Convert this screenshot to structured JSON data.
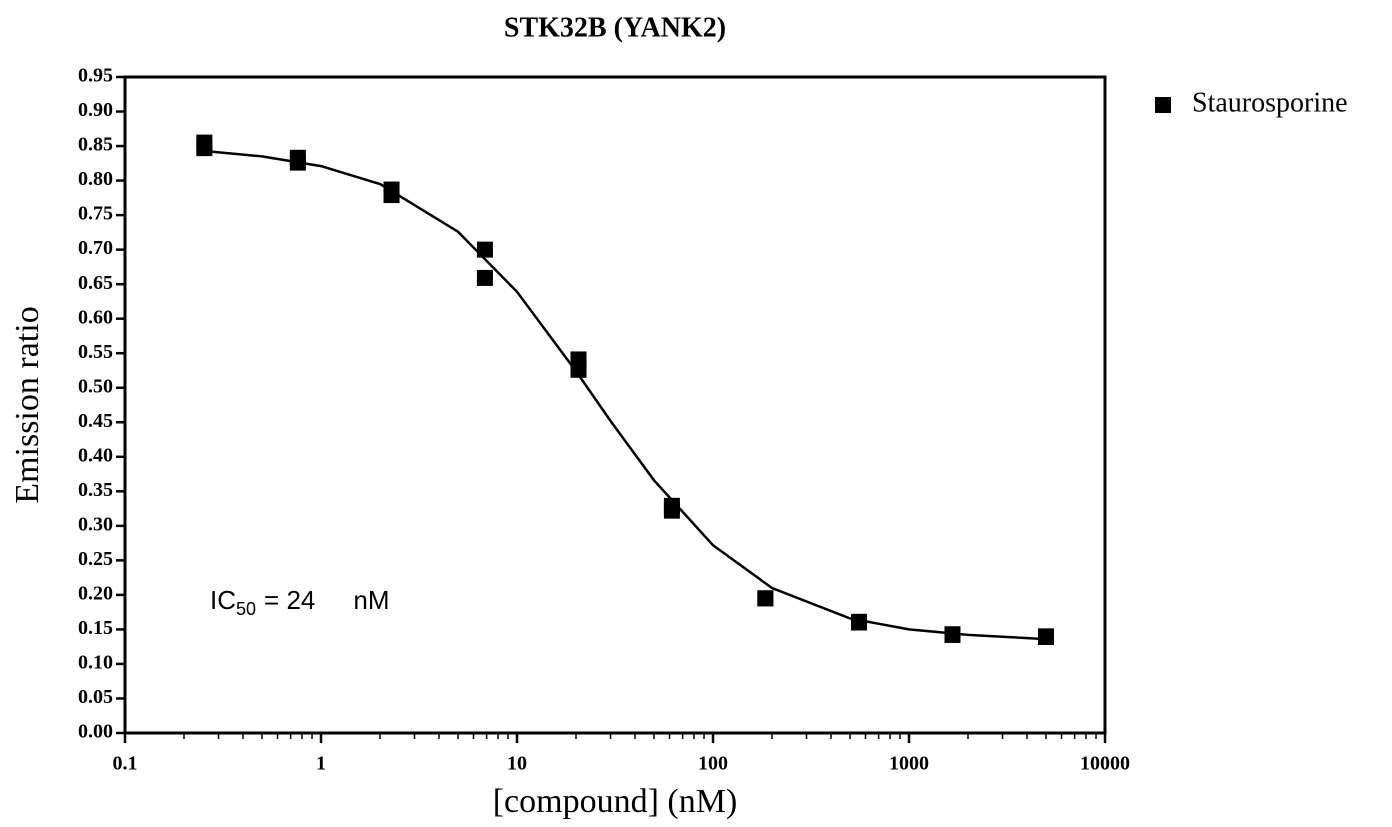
{
  "chart_data": {
    "type": "scatter",
    "title": "STK32B (YANK2)",
    "xlabel": "[compound] (nM)",
    "ylabel": "Emission ratio",
    "xscale": "log",
    "x": [
      0.254,
      0.254,
      0.762,
      0.762,
      2.29,
      2.29,
      6.86,
      6.86,
      20.6,
      20.6,
      61.7,
      61.7,
      185,
      185,
      556,
      556,
      1667,
      1667,
      5000,
      5000
    ],
    "series": [
      {
        "name": "Staurosporine",
        "color": "#000000",
        "values": [
          0.855,
          0.847,
          0.833,
          0.826,
          0.787,
          0.779,
          0.7,
          0.659,
          0.541,
          0.526,
          0.329,
          0.322,
          0.195,
          0.195,
          0.161,
          0.16,
          0.143,
          0.142,
          0.14,
          0.139
        ]
      }
    ],
    "fit_curve": {
      "color": "#000000",
      "x": [
        0.25,
        0.5,
        1,
        2,
        5,
        10,
        20,
        30,
        50,
        100,
        200,
        500,
        1000,
        2000,
        5000
      ],
      "values": [
        0.843,
        0.835,
        0.821,
        0.795,
        0.726,
        0.639,
        0.524,
        0.452,
        0.366,
        0.272,
        0.21,
        0.166,
        0.15,
        0.142,
        0.136
      ]
    },
    "annotation": {
      "prefix": "IC",
      "subscript": "50",
      "value": "= 24",
      "unit": "nM"
    },
    "legend": "outside-right-top",
    "xlim": [
      0.1,
      10000
    ],
    "xticks": [
      0.1,
      1,
      10,
      100,
      1000,
      10000
    ],
    "ylim": [
      0,
      0.95
    ],
    "yticks": [
      {
        "value": 0,
        "label": "0.00"
      },
      {
        "value": 0.05,
        "label": "0.05"
      },
      {
        "value": 0.1,
        "label": "0.10"
      },
      {
        "value": 0.15,
        "label": "0.15"
      },
      {
        "value": 0.2,
        "label": "0.20"
      },
      {
        "value": 0.25,
        "label": "0.25"
      },
      {
        "value": 0.3,
        "label": "0.30"
      },
      {
        "value": 0.35,
        "label": "0.35"
      },
      {
        "value": 0.4,
        "label": "0.40"
      },
      {
        "value": 0.45,
        "label": "0.45"
      },
      {
        "value": 0.5,
        "label": "0.50"
      },
      {
        "value": 0.55,
        "label": "0.55"
      },
      {
        "value": 0.6,
        "label": "0.60"
      },
      {
        "value": 0.65,
        "label": "0.65"
      },
      {
        "value": 0.7,
        "label": "0.70"
      },
      {
        "value": 0.75,
        "label": "0.75"
      },
      {
        "value": 0.8,
        "label": "0.80"
      },
      {
        "value": 0.85,
        "label": "0.85"
      },
      {
        "value": 0.9,
        "label": "0.90"
      },
      {
        "value": 0.95,
        "label": "0.95"
      }
    ],
    "grid": false
  }
}
